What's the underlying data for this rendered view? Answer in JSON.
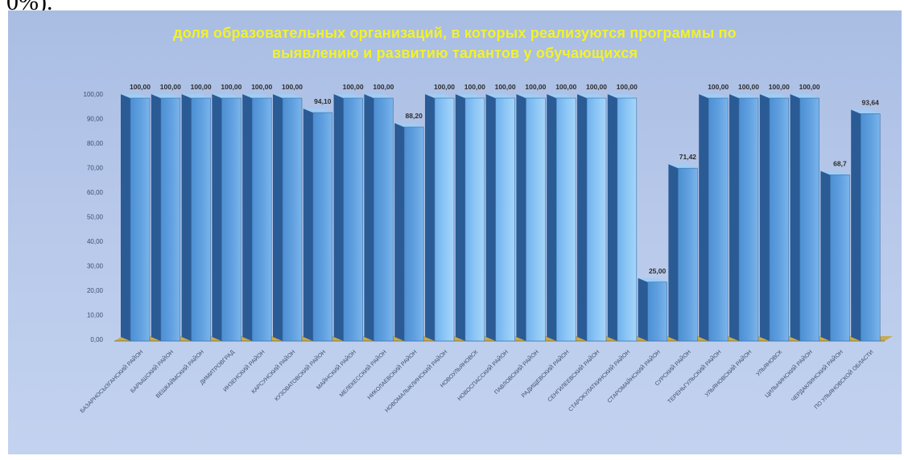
{
  "top_text": "0%).",
  "colors": {
    "panel": "#b7c8ea",
    "bar_front": "#5f9fdf",
    "bar_side": "#2b5b94",
    "title": "#f2f22a",
    "floor": "#c9a22a"
  },
  "chart_data": {
    "type": "bar",
    "title_lines": [
      "доля образовательных организаций, в которых реализуются программы по",
      "выявлению и развитию талантов у обучающихся"
    ],
    "ylim": [
      0,
      100
    ],
    "yticks": [
      "0,00",
      "10,00",
      "20,00",
      "30,00",
      "40,00",
      "50,00",
      "60,00",
      "70,00",
      "80,00",
      "90,00",
      "100,00"
    ],
    "categories": [
      "БАЗАРНОСЫЗГАНСКИЙ РАЙОН",
      "БАРЫШСКИЙ РАЙОН",
      "ВЕШКАЙМСКИЙ РАЙОН",
      "ДИМИТРОВГРАД",
      "ИНЗЕНСКИЙ РАЙОН",
      "КАРСУНСКИЙ РАЙОН",
      "КУЗОВАТОВСКИЙ РАЙОН",
      "МАЙНСКИЙ РАЙОН",
      "МЕЛЕКЕССКИЙ РАЙОН",
      "НИКОЛАЕВСКИЙ РАЙОН",
      "НОВОМАЛЫКЛИНСКИЙ РАЙОН",
      "НОВОУЛЬЯНОВСК",
      "НОВОСПАССКИЙ РАЙОН",
      "ПАВЛОВСКИЙ РАЙОН",
      "РАДИЩЕВСКИЙ РАЙОН",
      "СЕНГИЛЕЕВСКИЙ РАЙОН",
      "СТАРОКУЛАТКИНСКИЙ РАЙОН",
      "СТАРОМАЙНСКИЙ РАЙОН",
      "СУРСКИЙ РАЙОН",
      "ТЕРЕНЬГУЛЬСКИЙ РАЙОН",
      "УЛЬЯНОВСКИЙ РАЙОН",
      "УЛЬЯНОВСК",
      "ЦИЛЬНИНСКИЙ РАЙОН",
      "ЧЕРДАКЛИНСКИЙ РАЙОН",
      "ПО УЛЬЯНОВСКОЙ ОБЛАСТИ"
    ],
    "values": [
      100,
      100,
      100,
      100,
      100,
      100,
      94.1,
      100,
      100,
      88.2,
      100,
      100,
      100,
      100,
      100,
      100,
      100,
      25,
      71.42,
      100,
      100,
      100,
      100,
      68.7,
      93.64
    ],
    "data_labels": [
      "100,00",
      "100,00",
      "100,00",
      "100,00",
      "100,00",
      "100,00",
      "94,10",
      "100,00",
      "100,00",
      "88,20",
      "100,00",
      "100,00",
      "100,00",
      "100,00",
      "100,00",
      "100,00",
      "100,00",
      "25,00",
      "71,42",
      "100,00",
      "100,00",
      "100,00",
      "100,00",
      "68,7",
      "93,64"
    ],
    "legend": "none",
    "grid": false
  }
}
